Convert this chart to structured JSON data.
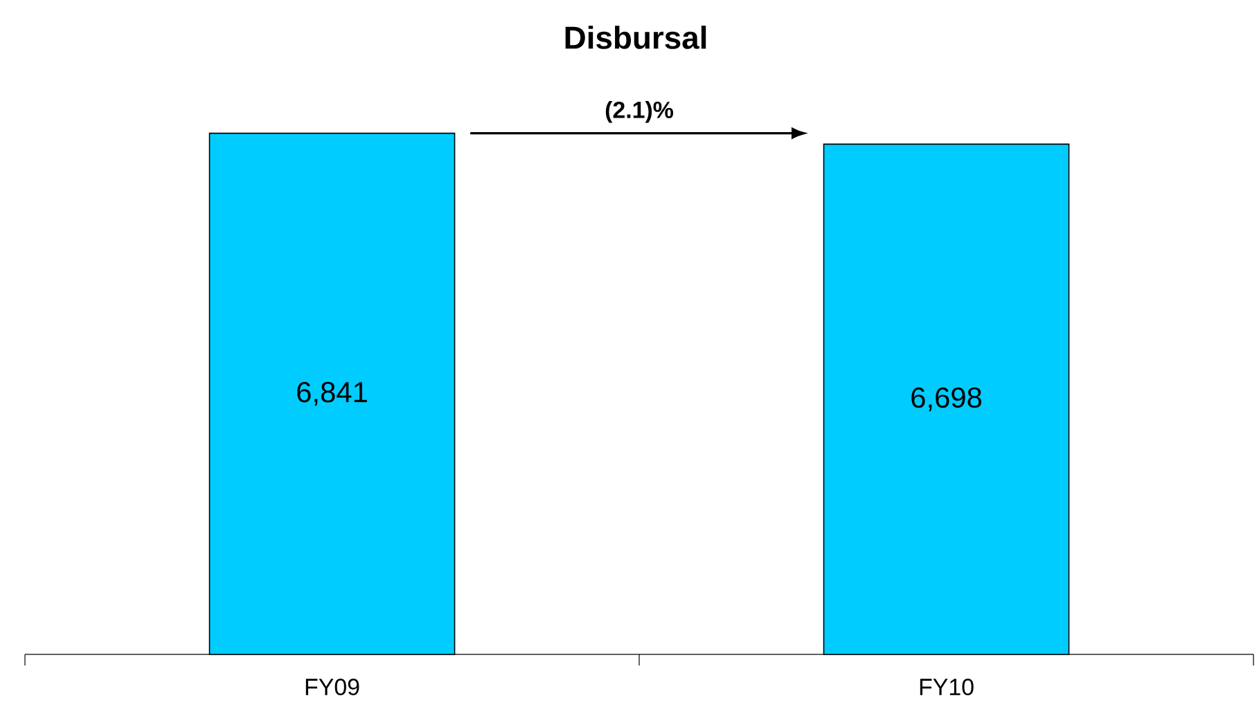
{
  "chart_data": {
    "type": "bar",
    "title": "**Disbursal**",
    "categories": [
      "FY09",
      "FY10"
    ],
    "values": [
      6841,
      6698
    ],
    "color": "#00ccff",
    "value_labels": [
      "6,841",
      "6,698"
    ],
    "annotations": [
      "**(2.1)%**"
    ]
  }
}
